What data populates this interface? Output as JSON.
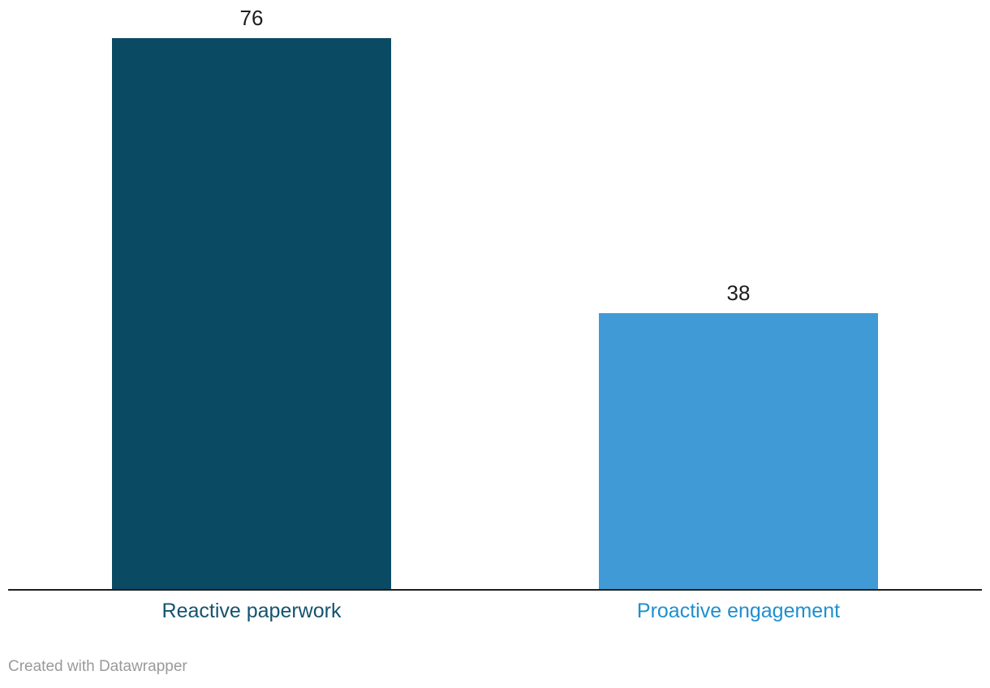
{
  "chart_data": {
    "type": "bar",
    "categories": [
      "Reactive paperwork",
      "Proactive engagement"
    ],
    "values": [
      76,
      38
    ],
    "title": "",
    "xlabel": "",
    "ylabel": "",
    "ylim": [
      0,
      76
    ],
    "grid": false,
    "legend": false,
    "orientation": "vertical",
    "bar_colors": [
      "#0b4a63",
      "#3f9ad5"
    ],
    "category_label_colors": [
      "#15536e",
      "#1f8fce"
    ],
    "value_label_color": "#1d1d1d",
    "axis_color": "#1d1d1d"
  },
  "footer": {
    "credit": "Created with Datawrapper",
    "color": "#9a9a9a"
  }
}
